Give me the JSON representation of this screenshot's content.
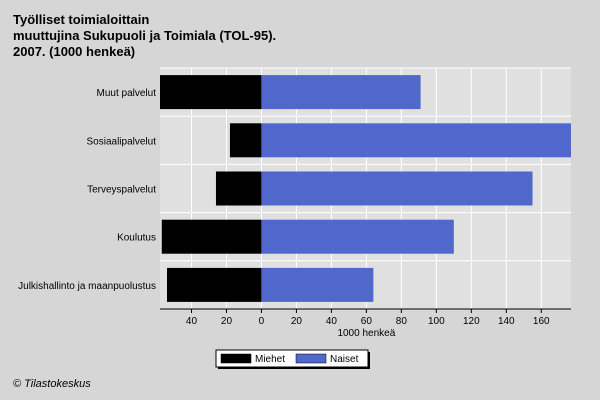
{
  "title_lines": [
    "Työlliset toimialoittain",
    "muuttujina Sukupuoli ja Toimiala (TOL-95).",
    "2007. (1000 henkeä)"
  ],
  "footer": "© Tilastokeskus",
  "colors": {
    "background": "#d6d6d6",
    "plot_bg": "#e0e0e0",
    "grid": "#ffffff",
    "miehet": "#000000",
    "naiset": "#5068cc"
  },
  "chart_data": {
    "type": "bar",
    "orientation": "horizontal",
    "diverging": true,
    "categories": [
      "Muut palvelut",
      "Sosiaalipalvelut",
      "Terveyspalvelut",
      "Koulutus",
      "Julkishallinto ja maanpuolustus"
    ],
    "series": [
      {
        "name": "Miehet",
        "values": [
          58,
          18,
          26,
          57,
          54
        ]
      },
      {
        "name": "Naiset",
        "values": [
          91,
          177,
          155,
          110,
          64
        ]
      }
    ],
    "xlabel": "1000 henkeä",
    "xlim": [
      -58,
      177
    ],
    "x_ticks": [
      -40,
      -20,
      0,
      20,
      40,
      60,
      80,
      100,
      120,
      140,
      160
    ],
    "x_tick_labels": [
      "40",
      "20",
      "0",
      "20",
      "40",
      "60",
      "80",
      "100",
      "120",
      "140",
      "160"
    ],
    "grid": true,
    "legend_position": "bottom"
  }
}
